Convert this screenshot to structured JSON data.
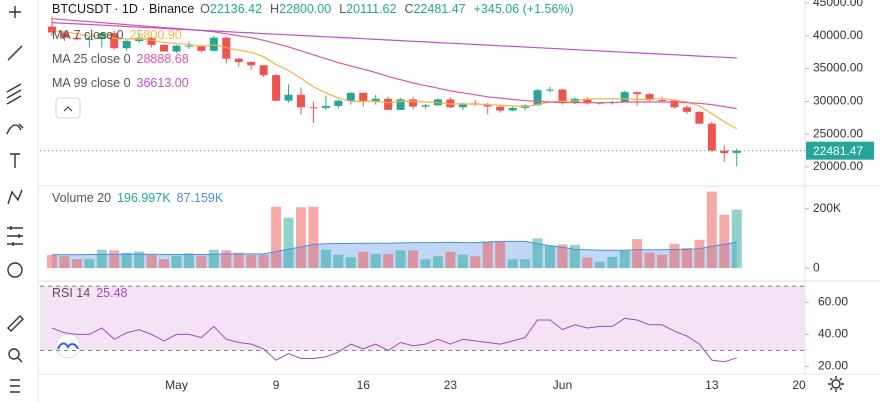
{
  "chart_data": [
    {
      "type": "candlestick",
      "title": "BTCUSDT · 1D · Binance",
      "ohlc_legend": [
        {
          "key": "O",
          "value": "22136.42"
        },
        {
          "key": "H",
          "value": "22800.00"
        },
        {
          "key": "L",
          "value": "20111.62"
        },
        {
          "key": "C",
          "value": "22481.47"
        }
      ],
      "change": "+345.06 (+1.56%)",
      "last_label": "22481.47",
      "up_color": "#26a69a",
      "down_color": "#ef5350",
      "categories": [
        null,
        null,
        null,
        null,
        null,
        null,
        null,
        null,
        null,
        null,
        "May",
        null,
        null,
        null,
        null,
        null,
        null,
        null,
        "9",
        null,
        null,
        null,
        null,
        null,
        null,
        "16",
        null,
        null,
        null,
        null,
        null,
        null,
        "23",
        null,
        null,
        null,
        null,
        null,
        null,
        null,
        null,
        "Jun",
        null,
        null,
        null,
        null,
        null,
        null,
        null,
        null,
        null,
        null,
        null,
        "13",
        null,
        null,
        null,
        null,
        null,
        null,
        "20"
      ],
      "open": [
        41400,
        40500,
        39700,
        39450,
        39500,
        40400,
        38100,
        39200,
        39700,
        38600,
        37600,
        38500,
        38500,
        37700,
        39700,
        36500,
        36000,
        35500,
        34000,
        30100,
        31000,
        29100,
        29000,
        29300,
        30100,
        31300,
        29900,
        30400,
        28700,
        30300,
        29200,
        29400,
        30300,
        29100,
        29700,
        29500,
        29200,
        28600,
        29000,
        29400,
        31700,
        31800,
        29800,
        30400,
        29700,
        29800,
        29900,
        31400,
        31100,
        30200,
        30100,
        29100,
        28400,
        26600,
        22500,
        22136.42,
        null,
        null,
        null,
        null,
        null
      ],
      "high": [
        42900,
        40800,
        40000,
        39900,
        40600,
        40800,
        39400,
        40300,
        39900,
        38800,
        38600,
        39100,
        38600,
        40000,
        39800,
        36600,
        36100,
        35500,
        34200,
        32600,
        32100,
        30000,
        30900,
        30300,
        31400,
        31300,
        31000,
        30700,
        30500,
        30700,
        29600,
        30500,
        30600,
        29800,
        30200,
        29800,
        29400,
        29200,
        29500,
        31900,
        32200,
        31900,
        30600,
        30600,
        29900,
        30100,
        31600,
        31500,
        31300,
        30700,
        30300,
        29400,
        28500,
        26900,
        23300,
        22800,
        null,
        null,
        null,
        null,
        null
      ],
      "low": [
        40000,
        39200,
        39300,
        38200,
        38200,
        37900,
        37700,
        38900,
        38200,
        37600,
        37400,
        38000,
        37500,
        37600,
        35800,
        35300,
        34800,
        33700,
        30000,
        29800,
        28000,
        26700,
        28700,
        28900,
        29500,
        29200,
        29500,
        28700,
        28700,
        28800,
        28900,
        29300,
        28900,
        28700,
        29300,
        28000,
        28300,
        28500,
        28600,
        29300,
        31300,
        29500,
        29600,
        29500,
        29500,
        29500,
        29900,
        29300,
        29900,
        29900,
        28900,
        28100,
        26600,
        22300,
        20800,
        20111.62,
        null,
        null,
        null,
        null,
        null
      ],
      "close": [
        40500,
        39700,
        39450,
        39500,
        40400,
        38100,
        39200,
        39700,
        38600,
        37600,
        38500,
        38500,
        37700,
        39700,
        36500,
        36000,
        35500,
        34000,
        30100,
        31000,
        29100,
        29000,
        29300,
        30100,
        31300,
        29900,
        30400,
        28700,
        30300,
        29200,
        29400,
        30300,
        29100,
        29700,
        29500,
        29200,
        28600,
        29000,
        29400,
        31700,
        31800,
        29800,
        30400,
        29700,
        29800,
        29900,
        31400,
        31100,
        30200,
        30100,
        29100,
        28400,
        26600,
        22500,
        22100,
        22481.47,
        null,
        null,
        null,
        null,
        null
      ],
      "series": [
        {
          "name": "MA 7 close 0",
          "color": "#f5b342",
          "last_label": "25800.90",
          "values": [
            40800,
            40600,
            40300,
            40000,
            39900,
            39600,
            39500,
            39500,
            39300,
            39000,
            38800,
            38700,
            38400,
            38600,
            38200,
            37800,
            37500,
            36800,
            35600,
            34700,
            33500,
            32200,
            31300,
            30500,
            30000,
            30000,
            30000,
            29800,
            30000,
            30000,
            29900,
            29800,
            29600,
            29600,
            29600,
            29500,
            29400,
            29300,
            29200,
            29500,
            29900,
            30000,
            30100,
            30300,
            30400,
            30400,
            30400,
            30300,
            30300,
            30400,
            30200,
            29900,
            29300,
            28100,
            26900,
            25800.9,
            null,
            null,
            null,
            null,
            null
          ]
        },
        {
          "name": "MA 25 close 0",
          "color": "#e0569f",
          "last_label": "28888.68",
          "values": [
            42600,
            42450,
            42300,
            42150,
            42000,
            41850,
            41700,
            41550,
            41400,
            41250,
            41100,
            40950,
            40800,
            40600,
            40300,
            40000,
            39700,
            39300,
            38800,
            38300,
            37700,
            37100,
            36500,
            35900,
            35400,
            34900,
            34400,
            33800,
            33300,
            32800,
            32400,
            32000,
            31600,
            31300,
            31000,
            30700,
            30500,
            30300,
            30100,
            30000,
            29900,
            29800,
            29800,
            29800,
            29800,
            29800,
            29900,
            29900,
            29900,
            29900,
            29900,
            29800,
            29700,
            29500,
            29200,
            28888.68,
            null,
            null,
            null,
            null,
            null
          ]
        },
        {
          "name": "MA 99 close 0",
          "color": "#c04fd0",
          "last_label": "36613.00",
          "values": [
            42000,
            41900,
            41800,
            41710,
            41610,
            41510,
            41410,
            41310,
            41220,
            41120,
            41020,
            40920,
            40820,
            40730,
            40630,
            40530,
            40430,
            40330,
            40240,
            40140,
            40040,
            39940,
            39840,
            39750,
            39650,
            39550,
            39450,
            39350,
            39260,
            39160,
            39060,
            38960,
            38860,
            38770,
            38670,
            38570,
            38470,
            38370,
            38280,
            38180,
            38080,
            37980,
            37880,
            37790,
            37690,
            37590,
            37490,
            37390,
            37300,
            37200,
            37100,
            37000,
            36900,
            36810,
            36710,
            36613,
            null,
            null,
            null,
            null,
            null
          ]
        }
      ],
      "ylim": [
        17250,
        45450
      ],
      "yticks": [
        {
          "value": 45000,
          "label": "45000.00"
        },
        {
          "value": 40000,
          "label": "40000.00"
        },
        {
          "value": 35000,
          "label": "35000.00"
        },
        {
          "value": 30000,
          "label": "30000.00"
        },
        {
          "value": 25000,
          "label": "25000.00"
        },
        {
          "value": 20000,
          "label": "20000.00"
        }
      ]
    },
    {
      "type": "bar",
      "title": "Volume 20",
      "up_color": "#26a69a",
      "down_color": "#ef5350",
      "series": [
        {
          "last_label": "196.997K",
          "values": [
            44000,
            40000,
            30000,
            30000,
            62000,
            60000,
            52000,
            56000,
            44000,
            30000,
            42000,
            50000,
            42000,
            62000,
            60000,
            52000,
            45000,
            45000,
            207000,
            170000,
            205000,
            207000,
            62000,
            45000,
            37000,
            55000,
            48000,
            48000,
            60000,
            60000,
            30000,
            40000,
            55000,
            45000,
            40000,
            90000,
            88000,
            30000,
            30000,
            100000,
            75000,
            80000,
            78000,
            35000,
            22000,
            38000,
            58000,
            98000,
            52000,
            45000,
            82000,
            68000,
            95000,
            258000,
            180000,
            196997,
            null,
            null,
            null,
            null,
            null
          ]
        },
        {
          "color": "#4a90e2",
          "last_label": "87.159K",
          "values": [
            45000,
            45000,
            45000,
            46000,
            46000,
            47000,
            47000,
            47000,
            47000,
            46000,
            46000,
            46000,
            46000,
            47000,
            48000,
            48000,
            48000,
            48000,
            56000,
            63000,
            72000,
            80000,
            82000,
            83000,
            83000,
            84000,
            84000,
            84000,
            85000,
            86000,
            86000,
            86000,
            87000,
            86000,
            86000,
            88000,
            90000,
            90000,
            90000,
            82000,
            76000,
            70000,
            63000,
            62000,
            60000,
            60000,
            60000,
            62000,
            62000,
            62000,
            63000,
            63000,
            65000,
            74000,
            80000,
            87159,
            null,
            null,
            null,
            null,
            null
          ]
        }
      ],
      "ylim": [
        -40000,
        270000
      ],
      "yticks": [
        0,
        {
          "value": 200000,
          "label": "200K"
        }
      ]
    },
    {
      "type": "line",
      "title": "RSI 14",
      "series": [
        {
          "color": "#9c4fb8",
          "last_label": "25.48",
          "values": [
            44,
            41,
            40,
            40,
            44,
            37,
            41,
            43,
            40,
            36,
            40,
            40,
            38,
            45,
            37,
            35,
            34,
            31,
            24,
            28,
            25,
            25,
            26,
            29,
            34,
            31,
            34,
            30,
            35,
            33,
            34,
            37,
            34,
            37,
            36,
            35,
            34,
            36,
            38,
            49,
            49,
            43,
            46,
            44,
            45,
            45,
            50,
            49,
            46,
            46,
            42,
            39,
            34,
            24,
            23,
            25.48,
            null,
            null,
            null,
            null,
            null
          ]
        }
      ],
      "levels": [
        30,
        70
      ],
      "ylim": [
        16,
        72
      ],
      "yticks": [
        {
          "value": 60,
          "label": "60.00"
        },
        {
          "value": 40,
          "label": "40.00"
        },
        {
          "value": 20,
          "label": "20.00"
        }
      ]
    }
  ]
}
